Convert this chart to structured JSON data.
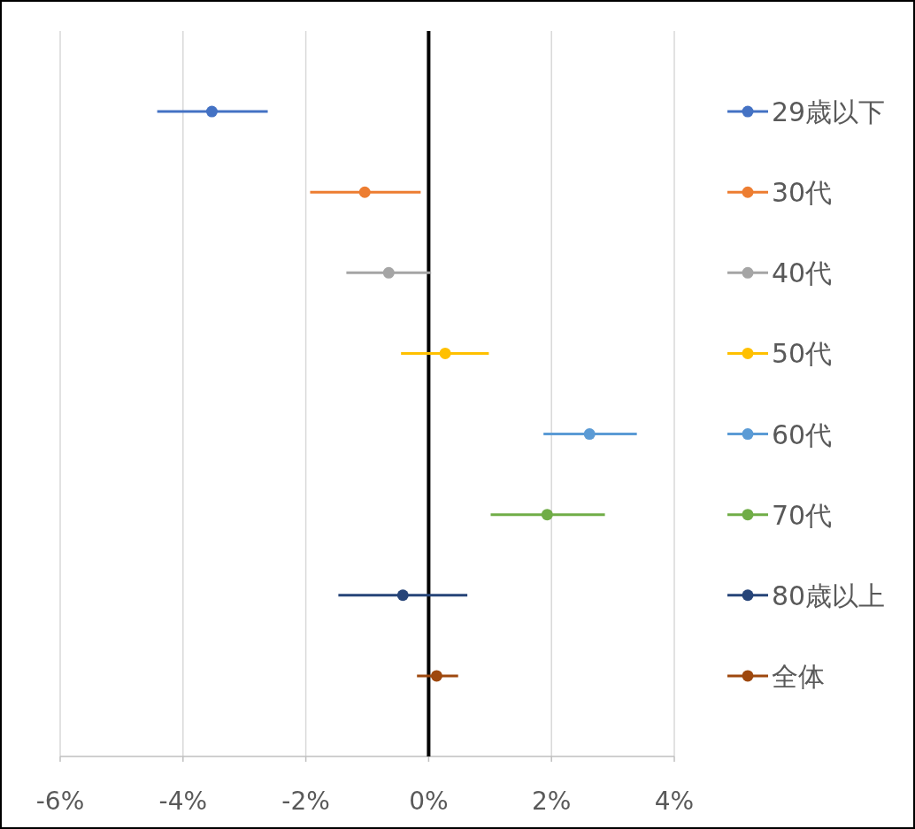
{
  "chart_data": {
    "type": "scatter",
    "orientation": "horizontal",
    "categories": [
      null,
      null,
      null,
      null,
      null,
      null,
      null,
      null
    ],
    "series": [
      {
        "name": "29歳以下",
        "color": "#4472c4",
        "values": [
          -3.53,
          null,
          null,
          null,
          null,
          null,
          null,
          null
        ],
        "errors": [
          [
            -4.42,
            -2.62
          ],
          null,
          null,
          null,
          null,
          null,
          null,
          null
        ]
      },
      {
        "name": "30代",
        "color": "#ed7d31",
        "values": [
          null,
          -1.04,
          null,
          null,
          null,
          null,
          null,
          null
        ],
        "errors": [
          null,
          [
            -1.93,
            -0.13
          ],
          null,
          null,
          null,
          null,
          null,
          null
        ]
      },
      {
        "name": "40代",
        "color": "#a5a5a5",
        "values": [
          null,
          null,
          -0.65,
          null,
          null,
          null,
          null,
          null
        ],
        "errors": [
          null,
          null,
          [
            -1.34,
            0.04
          ],
          null,
          null,
          null,
          null,
          null
        ]
      },
      {
        "name": "50代",
        "color": "#ffc000",
        "values": [
          null,
          null,
          null,
          0.27,
          null,
          null,
          null,
          null
        ],
        "errors": [
          null,
          null,
          null,
          [
            -0.45,
            0.98
          ],
          null,
          null,
          null,
          null
        ]
      },
      {
        "name": "60代",
        "color": "#5b9bd5",
        "values": [
          null,
          null,
          null,
          null,
          2.62,
          null,
          null,
          null
        ],
        "errors": [
          null,
          null,
          null,
          null,
          [
            1.87,
            3.39
          ],
          null,
          null,
          null
        ]
      },
      {
        "name": "70代",
        "color": "#70ad47",
        "values": [
          null,
          null,
          null,
          null,
          null,
          1.93,
          null,
          null
        ],
        "errors": [
          null,
          null,
          null,
          null,
          null,
          [
            1.01,
            2.87
          ],
          null,
          null
        ]
      },
      {
        "name": "80歳以上",
        "color": "#264478",
        "values": [
          null,
          null,
          null,
          null,
          null,
          null,
          -0.42,
          null
        ],
        "errors": [
          null,
          null,
          null,
          null,
          null,
          null,
          [
            -1.47,
            0.63
          ],
          null
        ]
      },
      {
        "name": "全体",
        "color": "#9e480e",
        "values": [
          null,
          null,
          null,
          null,
          null,
          null,
          null,
          0.13
        ],
        "errors": [
          null,
          null,
          null,
          null,
          null,
          null,
          null,
          [
            -0.19,
            0.48
          ]
        ]
      }
    ],
    "xlim": [
      -6,
      4
    ],
    "xticks": [
      {
        "value": -6,
        "label": "-6%"
      },
      {
        "value": -4,
        "label": "-4%"
      },
      {
        "value": -2,
        "label": "-2%"
      },
      {
        "value": 0,
        "label": "0%"
      },
      {
        "value": 2,
        "label": "2%"
      },
      {
        "value": 4,
        "label": "4%"
      }
    ],
    "ref_lines": [
      {
        "axis": "x",
        "value": 0,
        "color": "#000000"
      }
    ],
    "grid": "x",
    "legend": "right",
    "marker": "circle"
  }
}
